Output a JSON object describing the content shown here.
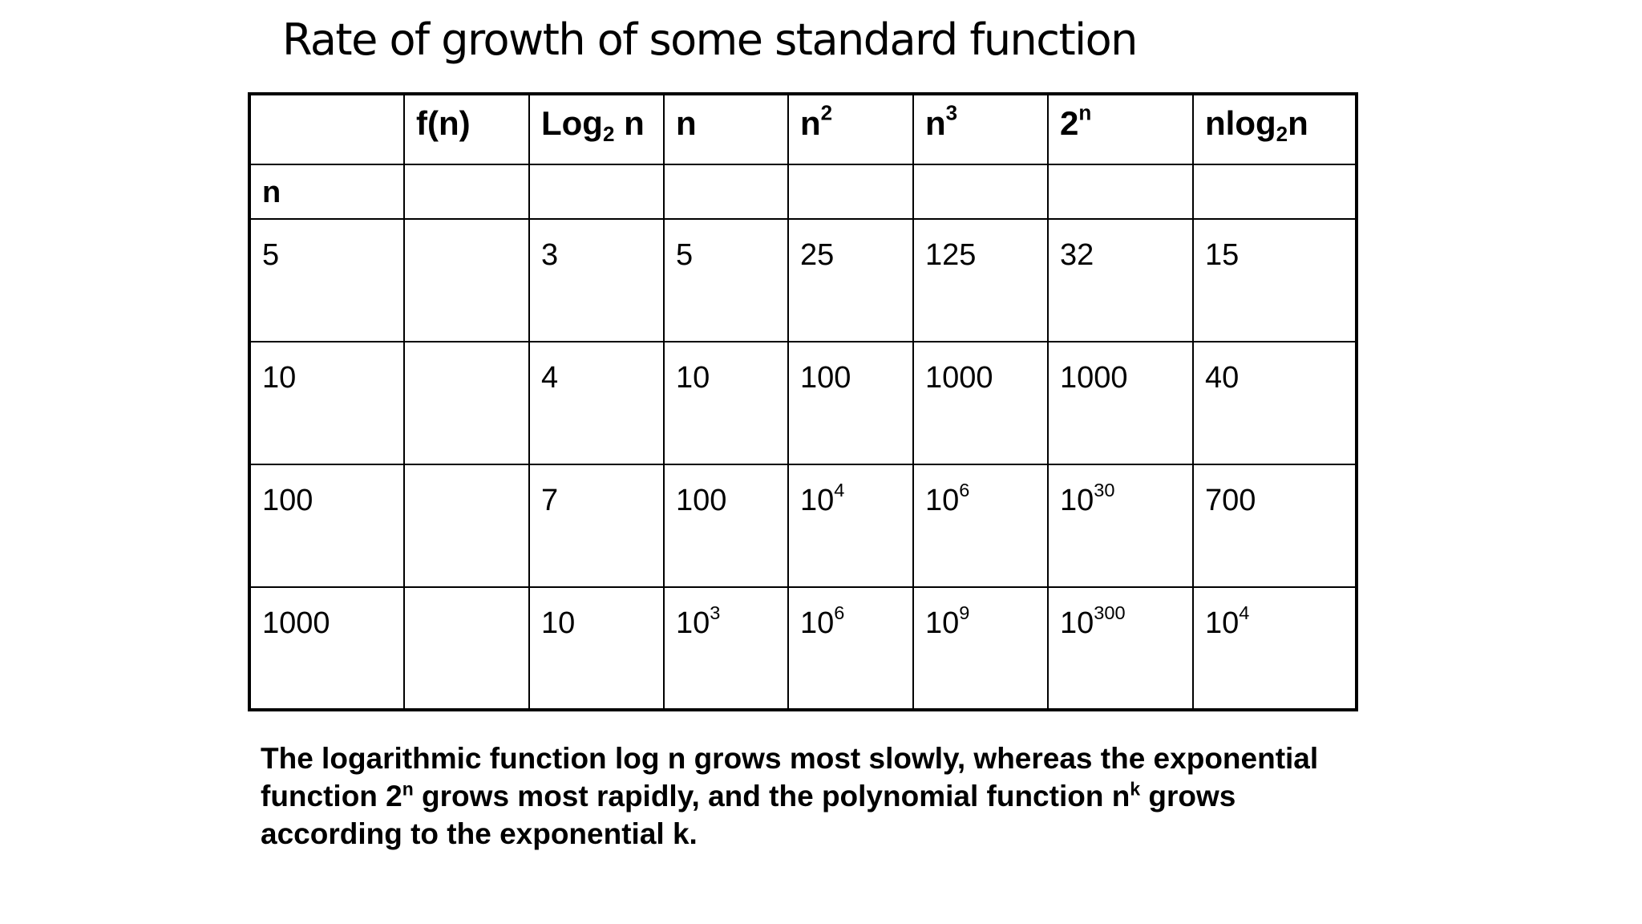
{
  "title": "Rate of growth of some standard function",
  "header": [
    {
      "base": "",
      "sup": "",
      "sub": "",
      "tail": ""
    },
    {
      "base": "f(n)",
      "sup": "",
      "sub": "",
      "tail": ""
    },
    {
      "base": "Log",
      "sup": "",
      "sub": "2",
      "tail": " n"
    },
    {
      "base": "n",
      "sup": "",
      "sub": "",
      "tail": ""
    },
    {
      "base": "n",
      "sup": "2",
      "sub": "",
      "tail": ""
    },
    {
      "base": "n",
      "sup": "3",
      "sub": "",
      "tail": ""
    },
    {
      "base": "2",
      "sup": "n",
      "sub": "",
      "tail": ""
    },
    {
      "base": "nlog",
      "sup": "",
      "sub": "2",
      "tail": "n"
    }
  ],
  "subheader": [
    "n",
    "",
    "",
    "",
    "",
    "",
    "",
    ""
  ],
  "rows": [
    [
      {
        "base": "5",
        "sup": ""
      },
      {
        "base": "",
        "sup": ""
      },
      {
        "base": "3",
        "sup": ""
      },
      {
        "base": "5",
        "sup": ""
      },
      {
        "base": "25",
        "sup": ""
      },
      {
        "base": "125",
        "sup": ""
      },
      {
        "base": "32",
        "sup": ""
      },
      {
        "base": "15",
        "sup": ""
      }
    ],
    [
      {
        "base": "10",
        "sup": ""
      },
      {
        "base": "",
        "sup": ""
      },
      {
        "base": "4",
        "sup": ""
      },
      {
        "base": "10",
        "sup": ""
      },
      {
        "base": "100",
        "sup": ""
      },
      {
        "base": "1000",
        "sup": ""
      },
      {
        "base": "1000",
        "sup": ""
      },
      {
        "base": "40",
        "sup": ""
      }
    ],
    [
      {
        "base": "100",
        "sup": ""
      },
      {
        "base": "",
        "sup": ""
      },
      {
        "base": "7",
        "sup": ""
      },
      {
        "base": "100",
        "sup": ""
      },
      {
        "base": "10",
        "sup": "4"
      },
      {
        "base": "10",
        "sup": "6"
      },
      {
        "base": "10",
        "sup": "30"
      },
      {
        "base": "700",
        "sup": ""
      }
    ],
    [
      {
        "base": "1000",
        "sup": ""
      },
      {
        "base": "",
        "sup": ""
      },
      {
        "base": "10",
        "sup": ""
      },
      {
        "base": "10",
        "sup": "3"
      },
      {
        "base": "10",
        "sup": "6"
      },
      {
        "base": "10",
        "sup": "9"
      },
      {
        "base": "10",
        "sup": "300"
      },
      {
        "base": "10",
        "sup": "4"
      }
    ]
  ],
  "footnote": {
    "part1": "The logarithmic function log n grows most slowly, whereas the exponential function 2",
    "sup1": "n",
    "part2": " grows most rapidly, and the polynomial function n",
    "sup2": "k",
    "part3": " grows according to the exponential k."
  }
}
